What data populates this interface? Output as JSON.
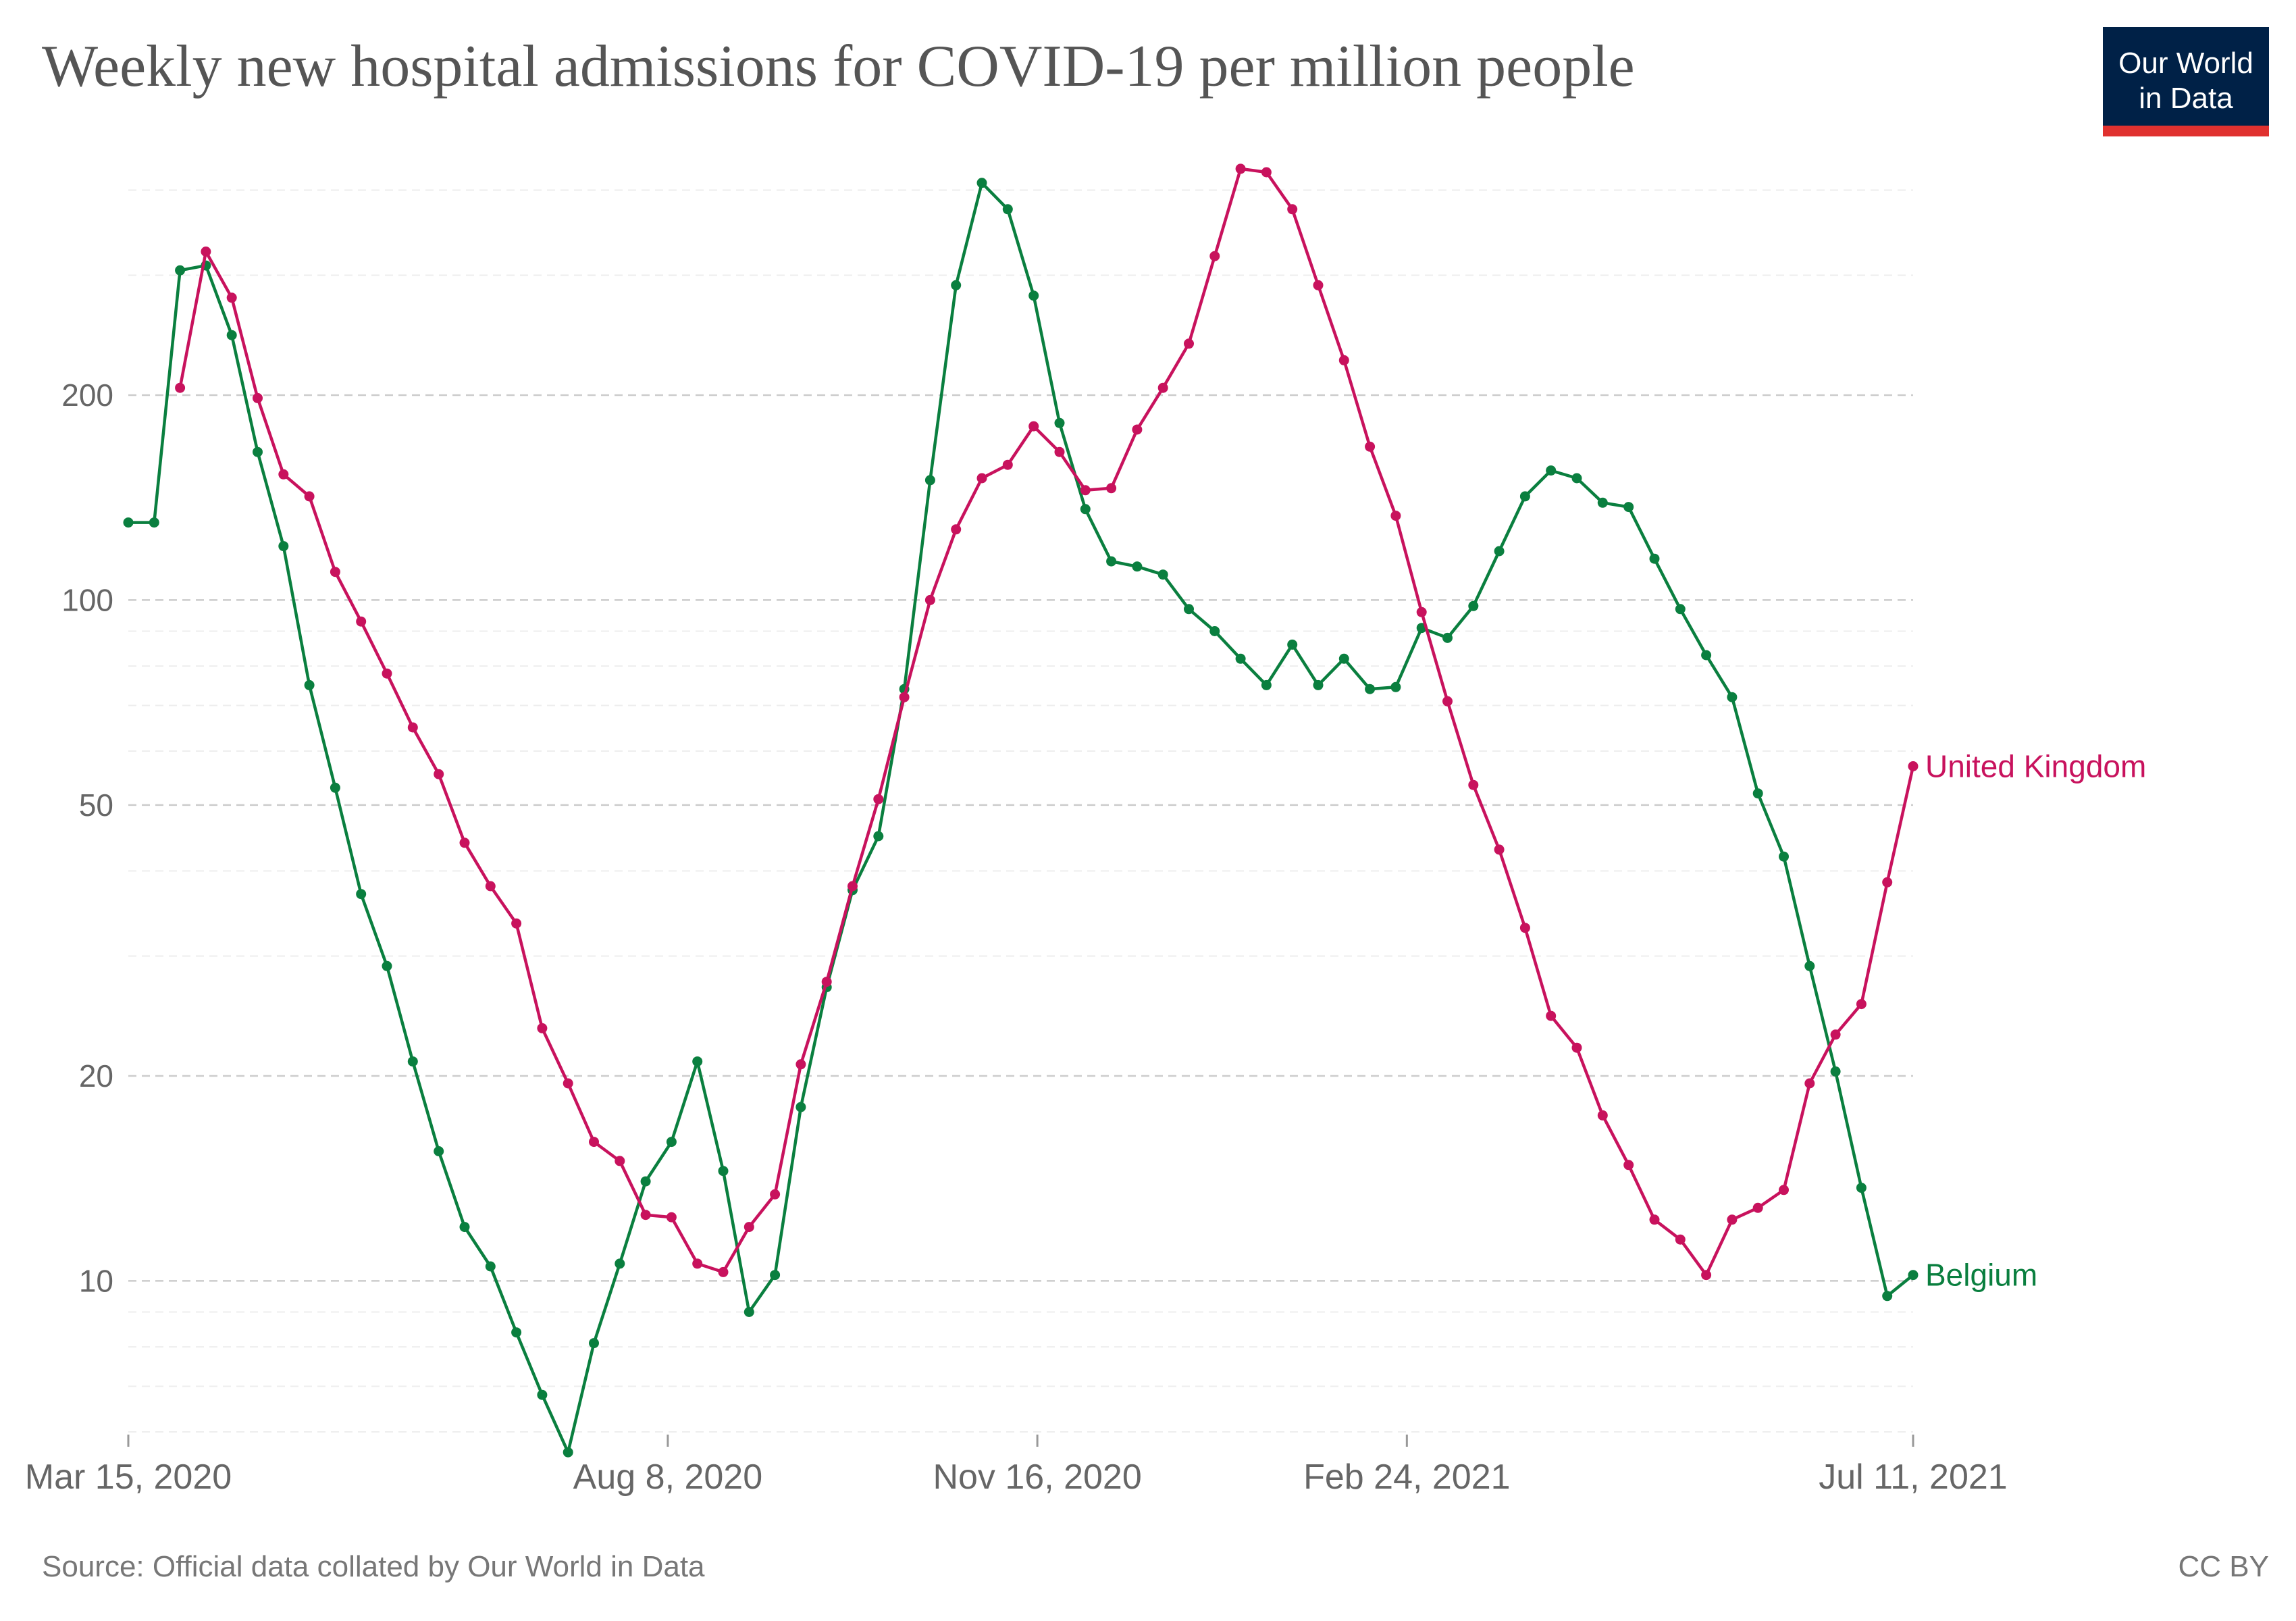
{
  "header": {
    "title": "Weekly new hospital admissions for COVID-19 per million people",
    "logo_line1": "Our World",
    "logo_line2": "in Data"
  },
  "footer": {
    "source": "Source: Official data collated by Our World in Data",
    "license": "CC BY"
  },
  "colors": {
    "uk": "#c8125d",
    "belgium": "#0a7f3f",
    "grid": "#dddddd",
    "logo_bg": "#002147",
    "logo_bar": "#e0312f"
  },
  "chart_data": {
    "type": "line",
    "title": "Weekly new hospital admissions for COVID-19 per million people",
    "y_scale": "log",
    "ylim": [
      6,
      450
    ],
    "y_ticks": [
      10,
      20,
      50,
      100,
      200
    ],
    "y_tick_labels": [
      "10",
      "20",
      "50",
      "100",
      "200"
    ],
    "x_start": "2020-03-15",
    "x_end": "2021-07-11",
    "x_ticks": [
      "2020-03-15",
      "2020-08-08",
      "2020-11-16",
      "2021-02-24",
      "2021-07-11"
    ],
    "x_tick_labels": [
      "Mar 15, 2020",
      "Aug 8, 2020",
      "Nov 16, 2020",
      "Feb 24, 2021",
      "Jul 11, 2021"
    ],
    "grid": "horizontal dashed",
    "legend": "line-end labels",
    "series": [
      {
        "name": "Belgium",
        "color": "#0a7f3f",
        "points": [
          [
            "2020-03-15",
            130
          ],
          [
            "2020-03-22",
            130
          ],
          [
            "2020-03-29",
            305
          ],
          [
            "2020-04-05",
            310
          ],
          [
            "2020-04-12",
            245
          ],
          [
            "2020-04-19",
            165
          ],
          [
            "2020-04-26",
            120
          ],
          [
            "2020-05-03",
            75
          ],
          [
            "2020-05-10",
            53
          ],
          [
            "2020-05-17",
            37
          ],
          [
            "2020-05-24",
            29
          ],
          [
            "2020-05-31",
            21
          ],
          [
            "2020-06-07",
            15.5
          ],
          [
            "2020-06-14",
            12
          ],
          [
            "2020-06-21",
            10.5
          ],
          [
            "2020-06-28",
            8.4
          ],
          [
            "2020-07-05",
            6.8
          ],
          [
            "2020-07-12",
            5.6
          ],
          [
            "2020-07-19",
            8.1
          ],
          [
            "2020-07-26",
            10.6
          ],
          [
            "2020-08-02",
            14
          ],
          [
            "2020-08-09",
            16
          ],
          [
            "2020-08-16",
            21
          ],
          [
            "2020-08-23",
            14.5
          ],
          [
            "2020-08-30",
            9
          ],
          [
            "2020-09-06",
            10.2
          ],
          [
            "2020-09-13",
            18
          ],
          [
            "2020-09-20",
            27
          ],
          [
            "2020-09-27",
            37.5
          ],
          [
            "2020-10-04",
            45
          ],
          [
            "2020-10-11",
            74
          ],
          [
            "2020-10-18",
            150
          ],
          [
            "2020-10-25",
            290
          ],
          [
            "2020-11-01",
            410
          ],
          [
            "2020-11-08",
            375
          ],
          [
            "2020-11-15",
            280
          ],
          [
            "2020-11-22",
            182
          ],
          [
            "2020-11-29",
            136
          ],
          [
            "2020-12-06",
            114
          ],
          [
            "2020-12-13",
            112
          ],
          [
            "2020-12-20",
            109
          ],
          [
            "2020-12-27",
            97
          ],
          [
            "2021-01-03",
            90
          ],
          [
            "2021-01-10",
            82
          ],
          [
            "2021-01-17",
            75
          ],
          [
            "2021-01-24",
            86
          ],
          [
            "2021-01-31",
            75
          ],
          [
            "2021-02-07",
            82
          ],
          [
            "2021-02-14",
            74
          ],
          [
            "2021-02-21",
            74.5
          ],
          [
            "2021-02-28",
            91
          ],
          [
            "2021-03-07",
            88
          ],
          [
            "2021-03-14",
            98
          ],
          [
            "2021-03-21",
            118
          ],
          [
            "2021-03-28",
            142
          ],
          [
            "2021-04-04",
            155
          ],
          [
            "2021-04-11",
            151
          ],
          [
            "2021-04-18",
            139
          ],
          [
            "2021-04-25",
            137
          ],
          [
            "2021-05-02",
            115
          ],
          [
            "2021-05-09",
            97
          ],
          [
            "2021-05-16",
            83
          ],
          [
            "2021-05-23",
            72
          ],
          [
            "2021-05-30",
            52
          ],
          [
            "2021-06-06",
            42
          ],
          [
            "2021-06-13",
            29
          ],
          [
            "2021-06-20",
            20.3
          ],
          [
            "2021-06-27",
            13.7
          ],
          [
            "2021-07-04",
            9.5
          ],
          [
            "2021-07-11",
            10.2
          ]
        ]
      },
      {
        "name": "United Kingdom",
        "color": "#c8125d",
        "points": [
          [
            "2020-03-29",
            205
          ],
          [
            "2020-04-05",
            325
          ],
          [
            "2020-04-12",
            278
          ],
          [
            "2020-04-19",
            198
          ],
          [
            "2020-04-26",
            153
          ],
          [
            "2020-05-03",
            142
          ],
          [
            "2020-05-10",
            110
          ],
          [
            "2020-05-17",
            93
          ],
          [
            "2020-05-24",
            78
          ],
          [
            "2020-05-31",
            65
          ],
          [
            "2020-06-07",
            55.5
          ],
          [
            "2020-06-14",
            44
          ],
          [
            "2020-06-21",
            38
          ],
          [
            "2020-06-28",
            33.5
          ],
          [
            "2020-07-05",
            23.5
          ],
          [
            "2020-07-12",
            19.5
          ],
          [
            "2020-07-19",
            16
          ],
          [
            "2020-07-26",
            15
          ],
          [
            "2020-08-02",
            12.5
          ],
          [
            "2020-08-09",
            12.4
          ],
          [
            "2020-08-16",
            10.6
          ],
          [
            "2020-08-23",
            10.3
          ],
          [
            "2020-08-30",
            12
          ],
          [
            "2020-09-06",
            13.4
          ],
          [
            "2020-09-13",
            20.8
          ],
          [
            "2020-09-20",
            27.5
          ],
          [
            "2020-09-27",
            38
          ],
          [
            "2020-10-04",
            51
          ],
          [
            "2020-10-11",
            72
          ],
          [
            "2020-10-18",
            100
          ],
          [
            "2020-10-25",
            127
          ],
          [
            "2020-11-01",
            151
          ],
          [
            "2020-11-08",
            158
          ],
          [
            "2020-11-15",
            180
          ],
          [
            "2020-11-22",
            165
          ],
          [
            "2020-11-29",
            145
          ],
          [
            "2020-12-06",
            146
          ],
          [
            "2020-12-13",
            178
          ],
          [
            "2020-12-20",
            205
          ],
          [
            "2020-12-27",
            238
          ],
          [
            "2021-01-03",
            320
          ],
          [
            "2021-01-10",
            430
          ],
          [
            "2021-01-17",
            425
          ],
          [
            "2021-01-24",
            375
          ],
          [
            "2021-01-31",
            290
          ],
          [
            "2021-02-07",
            225
          ],
          [
            "2021-02-14",
            168
          ],
          [
            "2021-02-21",
            133
          ],
          [
            "2021-02-28",
            96
          ],
          [
            "2021-03-07",
            71
          ],
          [
            "2021-03-14",
            53.5
          ],
          [
            "2021-03-21",
            43
          ],
          [
            "2021-03-28",
            33
          ],
          [
            "2021-04-04",
            24.5
          ],
          [
            "2021-04-11",
            22
          ],
          [
            "2021-04-18",
            17.5
          ],
          [
            "2021-04-25",
            14.8
          ],
          [
            "2021-05-02",
            12.3
          ],
          [
            "2021-05-09",
            11.5
          ],
          [
            "2021-05-16",
            10.2
          ],
          [
            "2021-05-23",
            12.3
          ],
          [
            "2021-05-30",
            12.8
          ],
          [
            "2021-06-06",
            13.6
          ],
          [
            "2021-06-13",
            19.5
          ],
          [
            "2021-06-20",
            23
          ],
          [
            "2021-06-27",
            25.5
          ],
          [
            "2021-07-04",
            38.5
          ],
          [
            "2021-07-11",
            57
          ]
        ]
      }
    ]
  }
}
